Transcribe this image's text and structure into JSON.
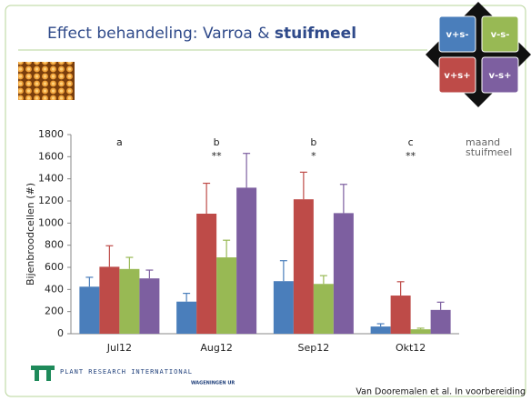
{
  "title_plain": "Effect behandeling: Varroa & ",
  "title_bold": "stuifmeel",
  "chart_data": {
    "type": "bar",
    "y_label": "Bijenbroodcellen (#)",
    "categories": [
      "Jul12",
      "Aug12",
      "Sep12",
      "Okt12"
    ],
    "series": [
      {
        "name": "v+s-",
        "color": "#4a7ebb",
        "values": [
          425,
          290,
          475,
          65
        ],
        "errors": [
          85,
          75,
          185,
          25
        ]
      },
      {
        "name": "v+s+",
        "color": "#be4b48",
        "values": [
          605,
          1085,
          1215,
          345
        ],
        "errors": [
          190,
          275,
          245,
          125
        ]
      },
      {
        "name": "v-s-",
        "color": "#98b954",
        "values": [
          585,
          690,
          450,
          40
        ],
        "errors": [
          105,
          155,
          75,
          10
        ]
      },
      {
        "name": "v-s+",
        "color": "#7d5fa0",
        "values": [
          500,
          1320,
          1090,
          215
        ],
        "errors": [
          75,
          310,
          260,
          70
        ]
      }
    ],
    "letters": [
      "a",
      "b",
      "b",
      "c"
    ],
    "stars": [
      null,
      "**",
      "*",
      "**"
    ],
    "annotation_labels": [
      "maand",
      "stuifmeel"
    ],
    "ylim": [
      0,
      1800
    ],
    "yticks": [
      0,
      200,
      400,
      600,
      800,
      1000,
      1200,
      1400,
      1600,
      1800
    ]
  },
  "logo_text": "PLANT RESEARCH INTERNATIONAL",
  "logo_sub": "WAGENINGEN UR",
  "citation": "Van Dooremalen et al. In voorbereiding"
}
